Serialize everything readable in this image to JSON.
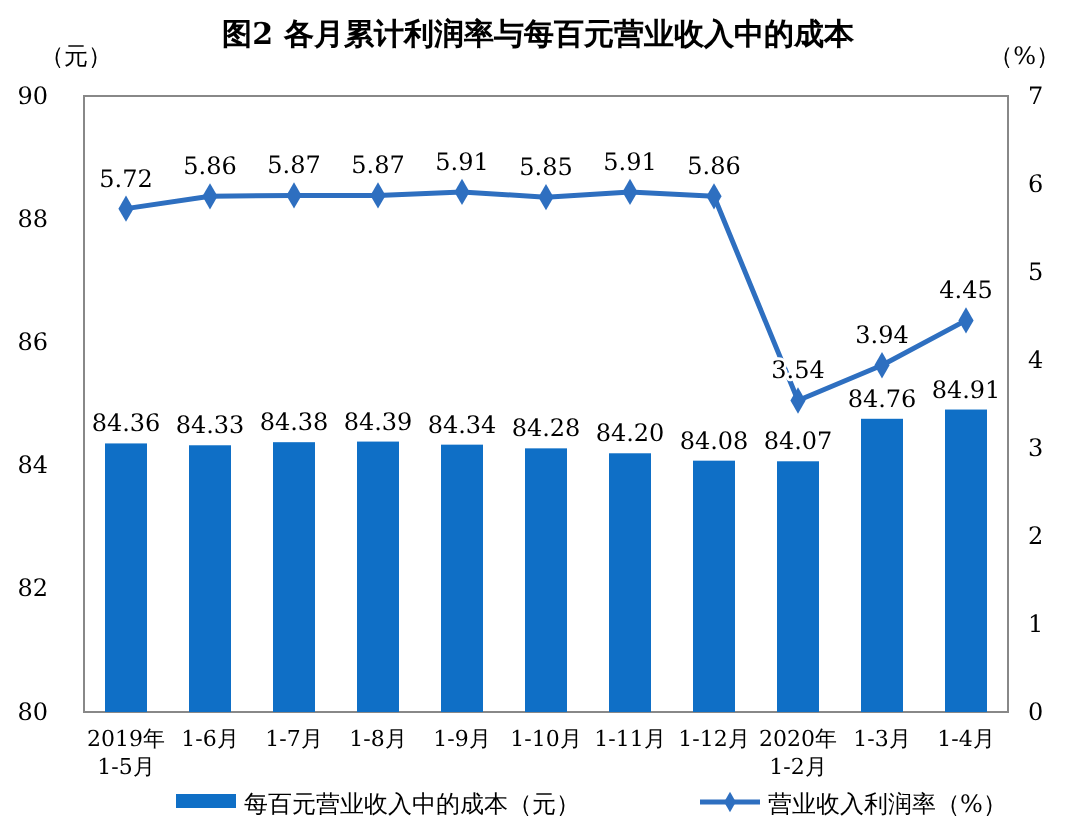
{
  "chart_data": {
    "type": "bar",
    "title": "图2  各月累计利润率与每百元营业收入中的成本",
    "ylabel": "（元）",
    "y2label": "（%）",
    "categories": [
      "2019年\n1-5月",
      "1-6月",
      "1-7月",
      "1-8月",
      "1-9月",
      "1-10月",
      "1-11月",
      "1-12月",
      "2020年\n1-2月",
      "1-3月",
      "1-4月"
    ],
    "series": [
      {
        "name": "每百元营业收入中的成本（元）",
        "color": "#0f6fc6",
        "values": [
          84.36,
          84.33,
          84.38,
          84.39,
          84.34,
          84.28,
          84.2,
          84.08,
          84.07,
          84.76,
          84.91
        ],
        "value_labels": [
          "84.36",
          "84.33",
          "84.38",
          "84.39",
          "84.34",
          "84.28",
          "84.20",
          "84.08",
          "84.07",
          "84.76",
          "84.91"
        ]
      },
      {
        "name": "营业收入利润率（%）",
        "type": "line",
        "axis": "y2",
        "color": "#2e6fc0",
        "marker": "diamond",
        "values": [
          5.72,
          5.86,
          5.87,
          5.87,
          5.91,
          5.85,
          5.91,
          5.86,
          3.54,
          3.94,
          4.45
        ],
        "value_labels": [
          "5.72",
          "5.86",
          "5.87",
          "5.87",
          "5.91",
          "5.85",
          "5.91",
          "5.86",
          "3.54",
          "3.94",
          "4.45"
        ]
      }
    ],
    "ylim": [
      80,
      90
    ],
    "yticks": [
      80,
      82,
      84,
      86,
      88,
      90
    ],
    "y2lim": [
      0,
      7
    ],
    "y2ticks": [
      0,
      1,
      2,
      3,
      4,
      5,
      6,
      7
    ],
    "grid": false,
    "legend": "bottom"
  }
}
